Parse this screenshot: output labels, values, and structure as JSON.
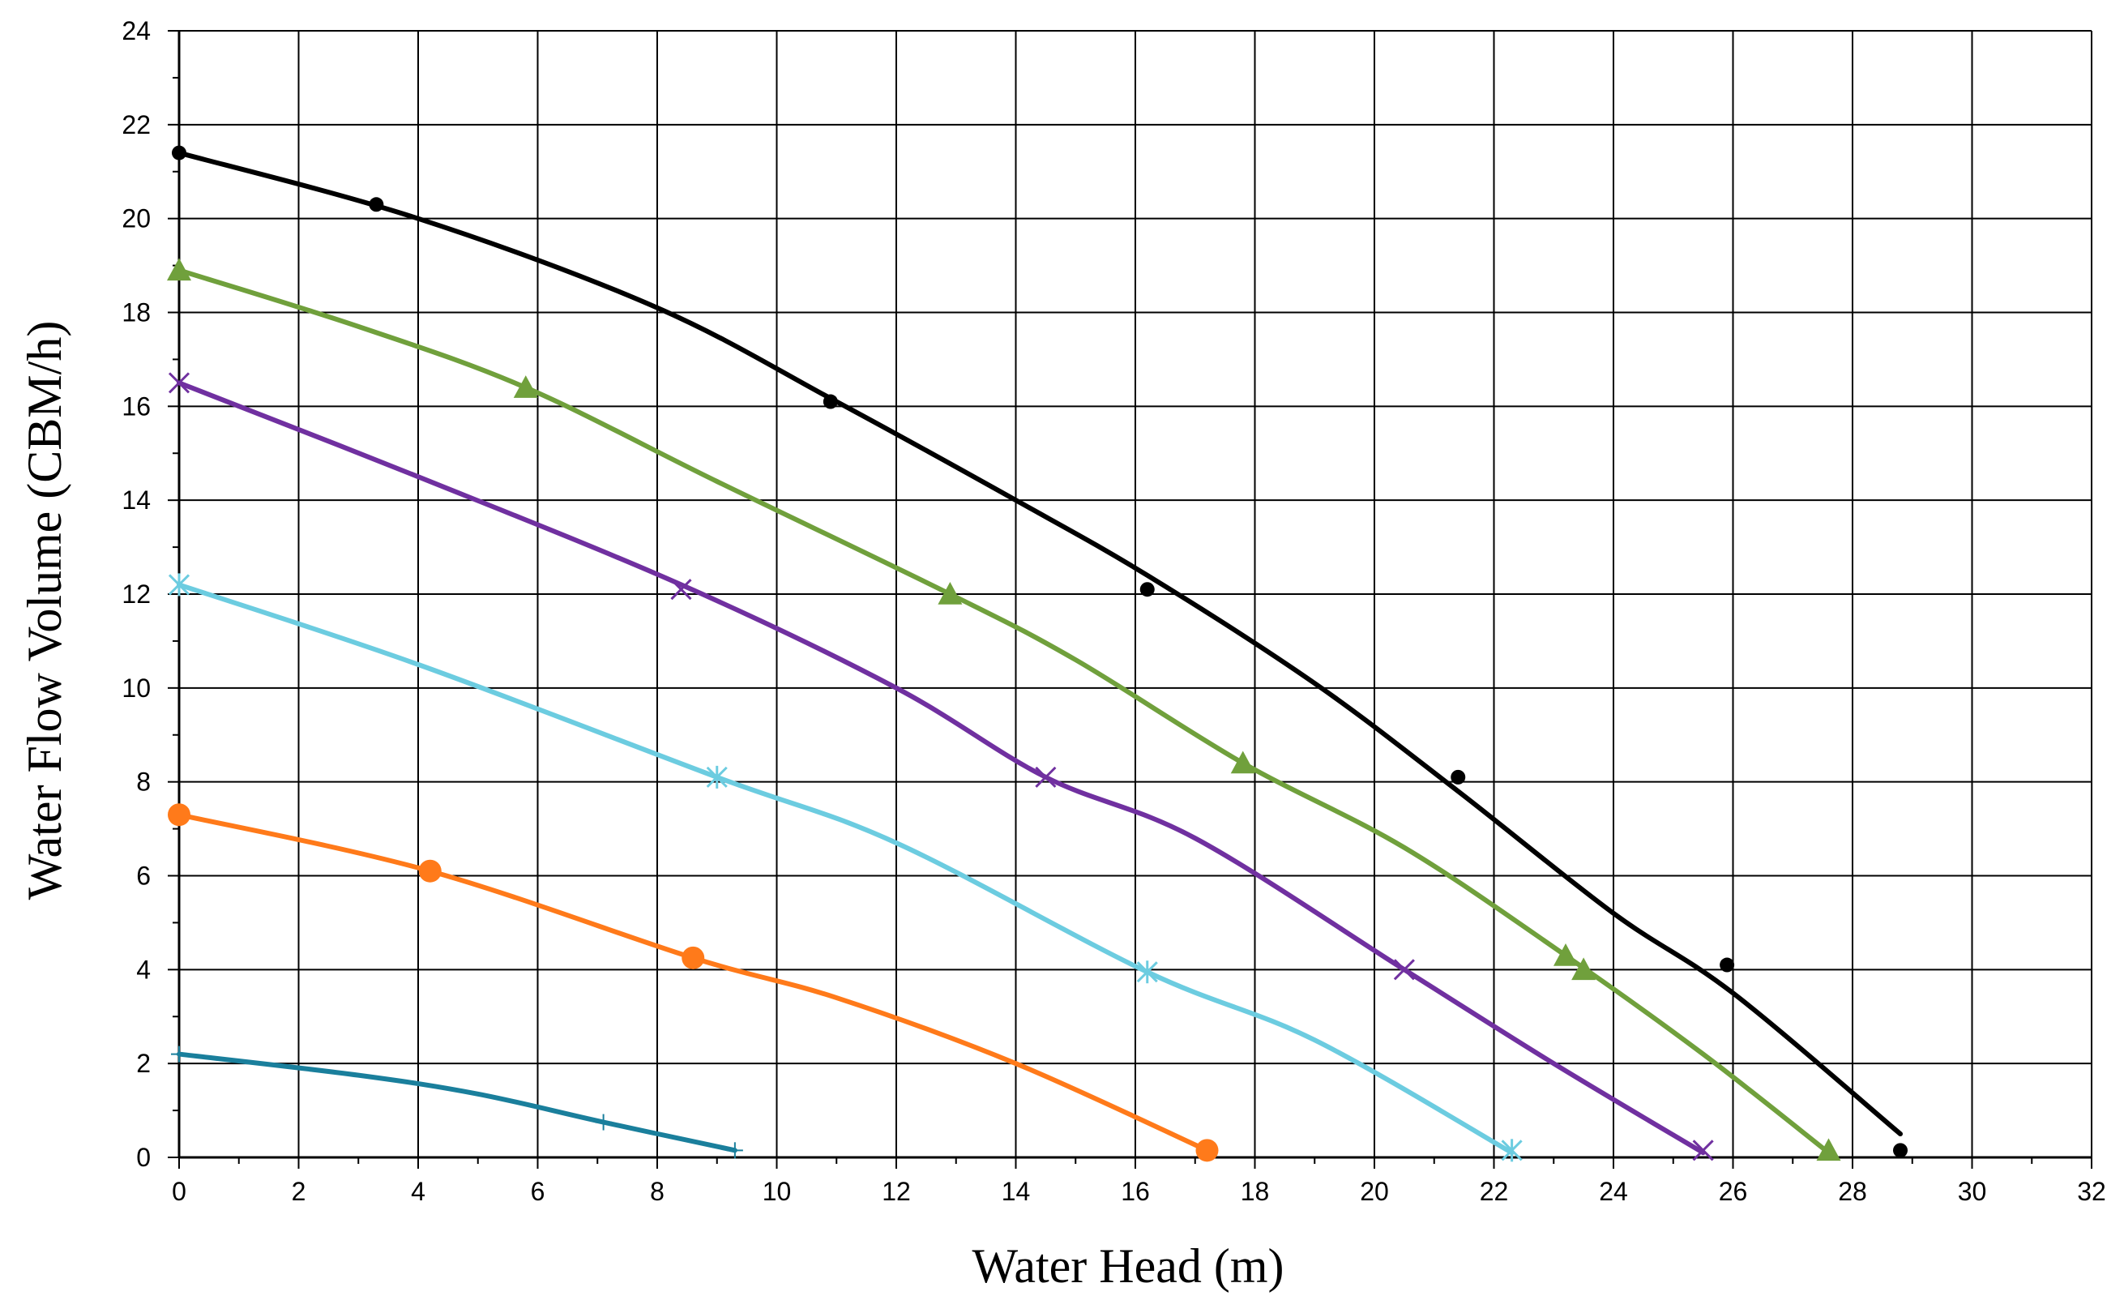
{
  "chart_data": {
    "type": "line",
    "title": "",
    "xlabel": "Water Head (m)",
    "ylabel": "Water Flow Volume (CBM/h)",
    "xlim": [
      0,
      32
    ],
    "ylim": [
      0,
      24
    ],
    "x_ticks": [
      "0",
      "2",
      "4",
      "6",
      "8",
      "10",
      "12",
      "14",
      "16",
      "18",
      "20",
      "22",
      "24",
      "26",
      "28",
      "30",
      "32"
    ],
    "y_ticks": [
      "0",
      "2",
      "4",
      "6",
      "8",
      "10",
      "12",
      "14",
      "16",
      "18",
      "20",
      "22",
      "24"
    ],
    "grid": true,
    "legend": "none",
    "series": [
      {
        "name": "black",
        "color": "#000000",
        "marker": "dot",
        "curve": [
          [
            0,
            21.4
          ],
          [
            4,
            20.0
          ],
          [
            8,
            18.1
          ],
          [
            11,
            16.1
          ],
          [
            14,
            14.0
          ],
          [
            16.2,
            12.4
          ],
          [
            19,
            10.1
          ],
          [
            21.4,
            7.8
          ],
          [
            24,
            5.2
          ],
          [
            26,
            3.5
          ],
          [
            28.8,
            0.5
          ]
        ],
        "markers": [
          [
            0,
            21.4
          ],
          [
            3.3,
            20.3
          ],
          [
            10.9,
            16.1
          ],
          [
            16.2,
            12.1
          ],
          [
            21.4,
            8.1
          ],
          [
            25.9,
            4.1
          ],
          [
            28.8,
            0.15
          ]
        ]
      },
      {
        "name": "green",
        "color": "#70A03C",
        "marker": "triangle",
        "curve": [
          [
            0,
            18.9
          ],
          [
            3,
            17.7
          ],
          [
            5.8,
            16.4
          ],
          [
            9,
            14.4
          ],
          [
            12.9,
            12.0
          ],
          [
            15,
            10.6
          ],
          [
            17.8,
            8.4
          ],
          [
            20.5,
            6.6
          ],
          [
            23.2,
            4.3
          ],
          [
            25.5,
            2.2
          ],
          [
            27.6,
            0.1
          ]
        ],
        "markers": [
          [
            0,
            18.9
          ],
          [
            5.8,
            16.4
          ],
          [
            12.9,
            12.0
          ],
          [
            17.8,
            8.4
          ],
          [
            23.2,
            4.3
          ],
          [
            23.5,
            4.0
          ],
          [
            27.6,
            0.15
          ]
        ]
      },
      {
        "name": "purple",
        "color": "#7030A0",
        "marker": "x",
        "curve": [
          [
            0,
            16.5
          ],
          [
            4,
            14.5
          ],
          [
            8.4,
            12.2
          ],
          [
            12,
            10.0
          ],
          [
            14.5,
            8.1
          ],
          [
            17,
            6.8
          ],
          [
            20.5,
            4.0
          ],
          [
            23,
            2.0
          ],
          [
            25.5,
            0.1
          ]
        ],
        "markers": [
          [
            0,
            16.5
          ],
          [
            8.4,
            12.1
          ],
          [
            14.5,
            8.1
          ],
          [
            20.5,
            4.0
          ],
          [
            25.5,
            0.15
          ]
        ]
      },
      {
        "name": "light-blue",
        "color": "#6CCCE0",
        "marker": "asterisk",
        "curve": [
          [
            0,
            12.2
          ],
          [
            4,
            10.5
          ],
          [
            9,
            8.1
          ],
          [
            12,
            6.7
          ],
          [
            16.2,
            3.95
          ],
          [
            19,
            2.5
          ],
          [
            22.3,
            0.1
          ]
        ],
        "markers": [
          [
            0,
            12.2
          ],
          [
            9,
            8.1
          ],
          [
            16.2,
            3.95
          ],
          [
            22.3,
            0.15
          ]
        ]
      },
      {
        "name": "orange",
        "color": "#FF7A1A",
        "marker": "circle",
        "curve": [
          [
            0,
            7.3
          ],
          [
            4.2,
            6.1
          ],
          [
            8.6,
            4.25
          ],
          [
            11,
            3.4
          ],
          [
            14,
            2.0
          ],
          [
            17.2,
            0.15
          ]
        ],
        "markers": [
          [
            0,
            7.3
          ],
          [
            4.2,
            6.1
          ],
          [
            8.6,
            4.25
          ],
          [
            17.2,
            0.15
          ]
        ]
      },
      {
        "name": "teal",
        "color": "#1A7F9C",
        "marker": "plus",
        "curve": [
          [
            0,
            2.2
          ],
          [
            3,
            1.75
          ],
          [
            5,
            1.35
          ],
          [
            7.1,
            0.75
          ],
          [
            9.3,
            0.15
          ]
        ],
        "markers": [
          [
            0,
            2.2
          ],
          [
            7.1,
            0.75
          ],
          [
            9.3,
            0.15
          ]
        ]
      }
    ]
  }
}
